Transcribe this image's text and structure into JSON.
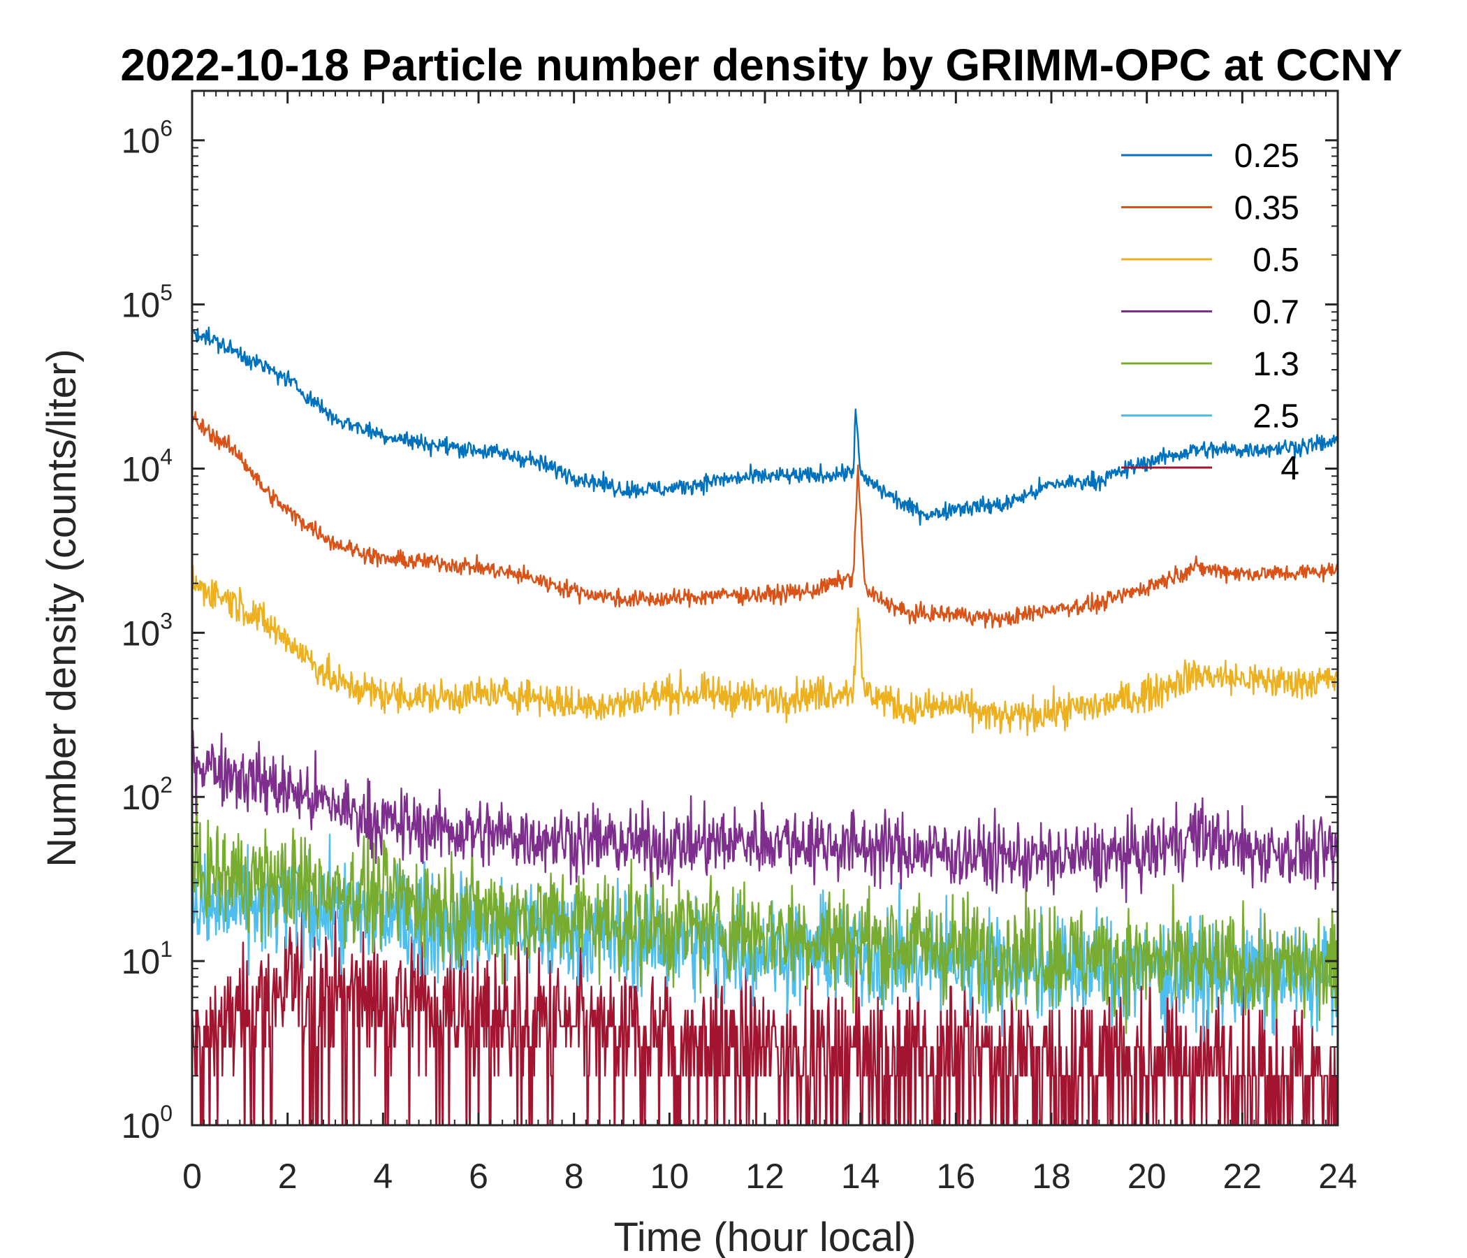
{
  "chart_data": {
    "type": "line",
    "title": "2022-10-18 Particle number density by GRIMM-OPC at CCNY",
    "xlabel": "Time (hour local)",
    "ylabel": "Number density (counts/liter)",
    "xlim": [
      0,
      24
    ],
    "ylim": [
      1,
      2000000
    ],
    "yscale": "log",
    "x_ticks": [
      "0",
      "2",
      "4",
      "6",
      "8",
      "10",
      "12",
      "14",
      "16",
      "18",
      "20",
      "22",
      "24"
    ],
    "y_ticks": [
      {
        "base": "10",
        "exp": "0"
      },
      {
        "base": "10",
        "exp": "1"
      },
      {
        "base": "10",
        "exp": "2"
      },
      {
        "base": "10",
        "exp": "3"
      },
      {
        "base": "10",
        "exp": "4"
      },
      {
        "base": "10",
        "exp": "5"
      },
      {
        "base": "10",
        "exp": "6"
      }
    ],
    "legend_position": "top-right",
    "series": [
      {
        "name": "0.25",
        "color": "#0072BD",
        "noise": 0.05,
        "x": [
          0,
          1,
          2,
          3,
          4,
          5,
          6,
          7,
          8,
          9,
          10,
          11,
          12,
          13,
          13.85,
          13.9,
          14,
          15,
          15.5,
          16,
          17,
          18,
          19,
          20,
          21,
          22,
          23,
          24
        ],
        "y": [
          70000,
          50000,
          35000,
          20000,
          16000,
          14000,
          13000,
          11500,
          9000,
          7500,
          7500,
          8500,
          9000,
          9000,
          9500,
          24000,
          9000,
          5800,
          5200,
          5800,
          6000,
          8000,
          8500,
          11000,
          13000,
          13000,
          13500,
          14500
        ]
      },
      {
        "name": "0.35",
        "color": "#D95319",
        "noise": 0.05,
        "x": [
          0,
          1,
          1.5,
          2,
          3,
          4,
          5,
          6,
          7,
          8,
          9,
          10,
          11,
          12,
          13,
          13.85,
          13.95,
          14.1,
          15,
          16,
          17,
          18,
          19,
          20,
          21,
          22,
          23,
          24
        ],
        "y": [
          20000,
          12000,
          7500,
          5500,
          3500,
          2800,
          2700,
          2500,
          2200,
          1800,
          1600,
          1600,
          1700,
          1700,
          1800,
          2200,
          10000,
          1800,
          1300,
          1300,
          1200,
          1400,
          1500,
          1900,
          2500,
          2300,
          2300,
          2400
        ]
      },
      {
        "name": "0.5",
        "color": "#EDB120",
        "noise": 0.1,
        "x": [
          0,
          1,
          2,
          3,
          4,
          5,
          6,
          7,
          8,
          9,
          10,
          11,
          12,
          13,
          13.85,
          13.95,
          14.05,
          15,
          16,
          17,
          18,
          19,
          20,
          21,
          22,
          23,
          24
        ],
        "y": [
          2000,
          1500,
          900,
          500,
          420,
          400,
          420,
          420,
          360,
          370,
          430,
          420,
          400,
          420,
          450,
          1500,
          450,
          340,
          360,
          300,
          330,
          360,
          420,
          560,
          520,
          500,
          520
        ]
      },
      {
        "name": "0.7",
        "color": "#7E2F8E",
        "noise": 0.2,
        "x": [
          0,
          2,
          4,
          6,
          8,
          10,
          12,
          14,
          16,
          18,
          20,
          21,
          22,
          24
        ],
        "y": [
          170,
          110,
          70,
          60,
          55,
          50,
          55,
          50,
          45,
          42,
          45,
          60,
          48,
          45
        ]
      },
      {
        "name": "1.3",
        "color": "#77AC30",
        "noise": 0.3,
        "x": [
          0,
          2,
          4,
          6,
          8,
          10,
          12,
          14,
          16,
          18,
          20,
          22,
          24
        ],
        "y": [
          35,
          30,
          25,
          20,
          18,
          16,
          15,
          13,
          12,
          11,
          10,
          9,
          9
        ]
      },
      {
        "name": "2.5",
        "color": "#4DBEEE",
        "noise": 0.3,
        "x": [
          0,
          2,
          4,
          6,
          8,
          10,
          12,
          14,
          16,
          18,
          20,
          22,
          24
        ],
        "y": [
          20,
          22,
          18,
          16,
          15,
          13,
          12,
          11,
          10,
          9,
          9,
          8,
          8
        ]
      },
      {
        "name": "4",
        "color": "#A2142F",
        "noise": 0.38,
        "x": [
          0,
          2,
          4,
          6,
          8,
          10,
          12,
          14,
          16,
          18,
          20,
          22,
          24
        ],
        "y": [
          3,
          7,
          6,
          5,
          4,
          3.5,
          3,
          3,
          3,
          2.5,
          2.5,
          2.5,
          2
        ]
      }
    ]
  }
}
